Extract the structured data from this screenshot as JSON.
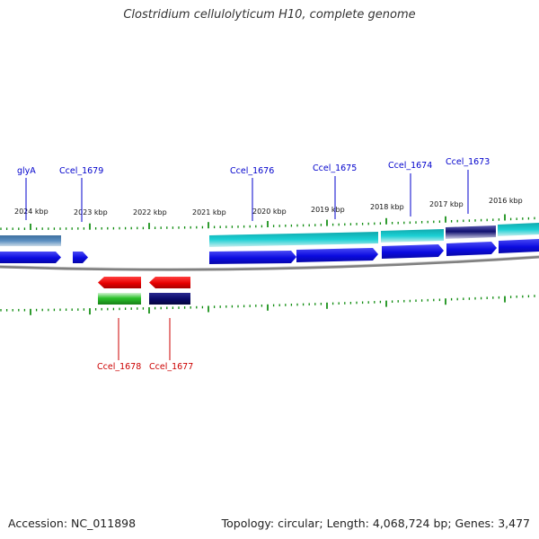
{
  "title": "Clostridium cellulolyticum H10, complete genome",
  "accession": "Accession: NC_011898",
  "summary": "Topology: circular; Length: 4,068,724 bp; Genes: 3,477",
  "colors": {
    "forward_gene": "#0b0be0",
    "cds_forward": "#1bc4c8",
    "cds_reverse_rna": "#2bc22b",
    "reverse_gene": "#e80000",
    "label_forward": "#0000cc",
    "label_reverse": "#cc0000",
    "tick": "#0b8a0b",
    "backbone": "#808080"
  },
  "scale_labels": [
    "2024 kbp",
    "2023 kbp",
    "2022 kbp",
    "2021 kbp",
    "2020 kbp",
    "2019 kbp",
    "2018 kbp",
    "2017 kbp",
    "2016 kbp"
  ],
  "forward_labels": [
    "glyA",
    "Ccel_1679",
    "Ccel_1676",
    "Ccel_1675",
    "Ccel_1674",
    "Ccel_1673"
  ],
  "reverse_labels": [
    "Ccel_1678",
    "Ccel_1677"
  ]
}
